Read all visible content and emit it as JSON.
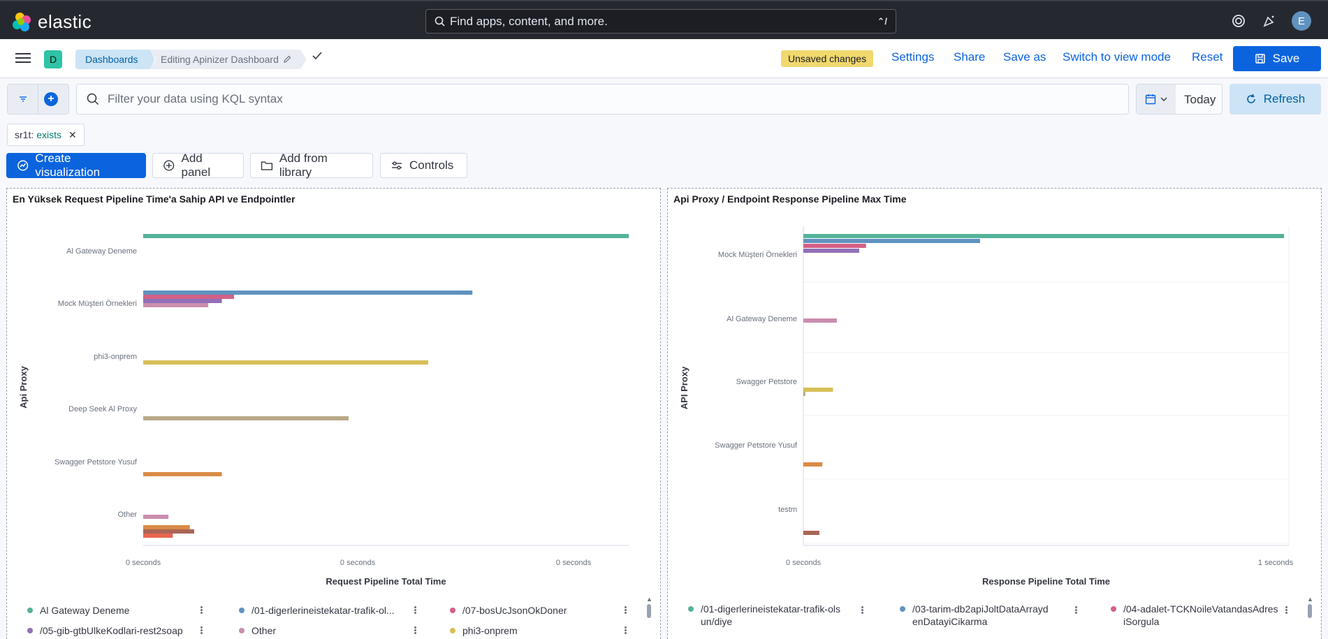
{
  "header": {
    "logo_text": "elastic",
    "search_placeholder": "Find apps, content, and more.",
    "search_shortcut": "⌃/",
    "avatar_initial": "E"
  },
  "nav": {
    "space_initial": "D",
    "breadcrumb_dashboards": "Dashboards",
    "breadcrumb_current": "Editing Apinizer Dashboard",
    "unsaved_badge": "Unsaved changes",
    "settings": "Settings",
    "share": "Share",
    "save_as": "Save as",
    "switch_view": "Switch to view mode",
    "reset": "Reset",
    "save": "Save"
  },
  "query": {
    "placeholder": "Filter your data using KQL syntax",
    "date": "Today",
    "refresh": "Refresh"
  },
  "filter_pill": {
    "field": "sr1t:",
    "value": "exists"
  },
  "toolbar": {
    "create_visualization": "Create visualization",
    "add_panel": "Add panel",
    "add_from_library": "Add from library",
    "controls": "Controls"
  },
  "panels": [
    {
      "title": "En Yüksek Request Pipeline Time'a Sahip API ve Endpointler",
      "chart_data": {
        "type": "bar",
        "orientation": "horizontal",
        "ylabel": "Api Proxy",
        "xlabel": "Request Pipeline Total Time",
        "x_ticks": [
          "0 seconds",
          "0 seconds",
          "0 seconds"
        ],
        "categories": [
          "Al Gateway Deneme",
          "Mock Müşteri Örnekleri",
          "phi3-onprem",
          "Deep Seek Al Proxy",
          "Swagger Petstore Yusuf",
          "Other"
        ],
        "groups": [
          [
            {
              "color": "#54b399",
              "value": 1.0
            }
          ],
          [
            {
              "color": "#6092c0",
              "value": 0.678
            },
            {
              "color": "#d36086",
              "value": 0.187
            },
            {
              "color": "#9170b8",
              "value": 0.162
            },
            {
              "color": "#ca8eae",
              "value": 0.134
            }
          ],
          [
            {
              "color": "#d6bf57",
              "value": 0.587
            }
          ],
          [
            {
              "color": "#b9a888",
              "value": 0.423
            }
          ],
          [
            {
              "color": "#da8b45",
              "value": 0.162
            }
          ],
          [
            {
              "color": "#ca8eae",
              "value": 0.052
            },
            {
              "color": "#da8b45",
              "value": 0.096
            },
            {
              "color": "#aa6556",
              "value": 0.105
            },
            {
              "color": "#e7664c",
              "value": 0.061
            }
          ]
        ]
      },
      "legend": [
        {
          "label": "Al Gateway Deneme",
          "color": "#54b399"
        },
        {
          "label": "/01-digerlerineistekatar-trafik-ol...",
          "color": "#6092c0"
        },
        {
          "label": "/07-bosUcJsonOkDoner",
          "color": "#d36086"
        },
        {
          "label": "/05-gib-gtbUlkeKodlari-rest2soap",
          "color": "#9170b8"
        },
        {
          "label": "Other",
          "color": "#ca8eae"
        },
        {
          "label": "phi3-onprem",
          "color": "#d6bf57"
        }
      ]
    },
    {
      "title": "Api Proxy / Endpoint Response Pipeline Max Time",
      "chart_data": {
        "type": "bar",
        "orientation": "horizontal",
        "ylabel": "API Proxy",
        "xlabel": "Response Pipeline Total Time",
        "x_ticks": [
          "0 seconds",
          "1 seconds"
        ],
        "categories": [
          "Mock Müşteri Örnekleri",
          "Al Gateway Deneme",
          "Swagger Petstore",
          "Swagger Petstore Yusuf",
          "testm"
        ],
        "groups": [
          [
            {
              "color": "#54b399",
              "value": 0.99
            },
            {
              "color": "#6092c0",
              "value": 0.364
            },
            {
              "color": "#d36086",
              "value": 0.129
            },
            {
              "color": "#9170b8",
              "value": 0.115
            }
          ],
          [
            {
              "color": "#ca8eae",
              "value": 0.069
            }
          ],
          [
            {
              "color": "#d6bf57",
              "value": 0.061
            },
            {
              "color": "#b9a888",
              "value": 0.004
            }
          ],
          [
            {
              "color": "#da8b45",
              "value": 0.039
            }
          ],
          [
            {
              "color": "#aa6556",
              "value": 0.033
            }
          ]
        ]
      },
      "legend": [
        {
          "label": "/01-digerlerineistekatar-trafik-olsun/diye",
          "color": "#54b399"
        },
        {
          "label": "/03-tarim-db2apiJoltDataArraydenDatayiCikarma",
          "color": "#6092c0"
        },
        {
          "label": "/04-adalet-TCKNoileVatandasAdresiSorgula",
          "color": "#d36086"
        }
      ]
    }
  ]
}
